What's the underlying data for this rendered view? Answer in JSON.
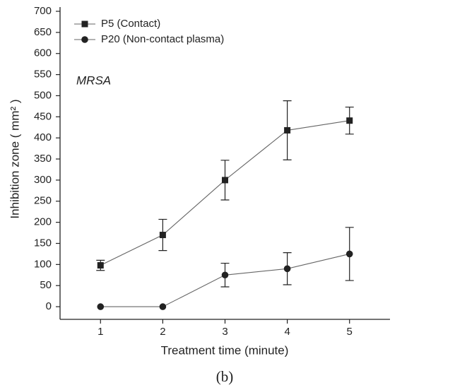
{
  "chart_data": {
    "type": "line",
    "x": [
      1,
      2,
      3,
      4,
      5
    ],
    "series": [
      {
        "name": "P5 (Contact)",
        "marker": "square",
        "color": "#222222",
        "values": [
          98,
          170,
          300,
          418,
          441
        ],
        "errors": [
          12,
          37,
          47,
          70,
          32
        ]
      },
      {
        "name": "P20 (Non-contact plasma)",
        "marker": "circle",
        "color": "#222222",
        "values": [
          0,
          0,
          75,
          90,
          125
        ],
        "errors": [
          0,
          0,
          28,
          38,
          63
        ]
      }
    ],
    "xlim": [
      0.35,
      5.65
    ],
    "xticks": [
      1,
      2,
      3,
      4,
      5
    ],
    "ylim": [
      -30,
      700
    ],
    "yticks": [
      0,
      50,
      100,
      150,
      200,
      250,
      300,
      350,
      400,
      450,
      500,
      550,
      600,
      650,
      700
    ],
    "xlabel": "Treatment time (minute)",
    "ylabel": "Inhibition zone ( mm² )",
    "annotation": "MRSA",
    "caption": "(b)",
    "legend": "top-left"
  }
}
